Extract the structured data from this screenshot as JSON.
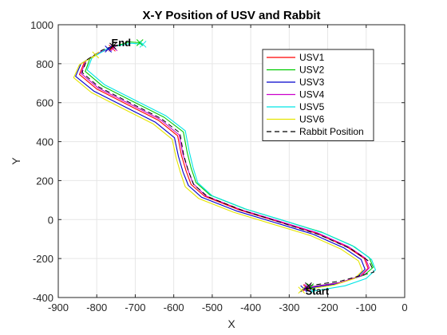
{
  "chart_data": {
    "type": "line",
    "title": "X-Y Position of USV and Rabbit",
    "xlabel": "X",
    "ylabel": "Y",
    "xlim": [
      -900,
      0
    ],
    "ylim": [
      -400,
      1000
    ],
    "xticks": [
      "-900",
      "-800",
      "-700",
      "-600",
      "-500",
      "-400",
      "-300",
      "-200",
      "-100",
      "0"
    ],
    "yticks": [
      "-400",
      "-200",
      "0",
      "200",
      "400",
      "600",
      "800",
      "1000"
    ],
    "grid": true,
    "legend_position": "top-right",
    "annotations": [
      {
        "text": "Start",
        "x": -258,
        "y": -385
      },
      {
        "text": "End",
        "x": -762,
        "y": 890
      }
    ],
    "series": [
      {
        "name": "USV1",
        "color": "#ff0000",
        "x": [
          -255,
          -170,
          -115,
          -95,
          -105,
          -150,
          -230,
          -330,
          -430,
          -520,
          -555,
          -568,
          -580,
          -590,
          -640,
          -720,
          -800,
          -845,
          -832,
          -790,
          -760
        ],
        "y": [
          -350,
          -325,
          -290,
          -250,
          -200,
          -140,
          -70,
          -10,
          50,
          120,
          180,
          250,
          330,
          430,
          510,
          590,
          670,
          745,
          810,
          860,
          880
        ]
      },
      {
        "name": "USV2",
        "color": "#00cc00",
        "x": [
          -245,
          -160,
          -105,
          -82,
          -92,
          -135,
          -215,
          -315,
          -415,
          -505,
          -542,
          -555,
          -565,
          -575,
          -625,
          -705,
          -785,
          -830,
          -818,
          -770,
          -715,
          -688
        ],
        "y": [
          -345,
          -320,
          -285,
          -245,
          -195,
          -135,
          -65,
          -5,
          55,
          125,
          190,
          265,
          345,
          450,
          525,
          605,
          685,
          760,
          825,
          880,
          912,
          908
        ]
      },
      {
        "name": "USV3",
        "color": "#0000cc",
        "x": [
          -262,
          -178,
          -123,
          -103,
          -113,
          -158,
          -238,
          -338,
          -438,
          -528,
          -562,
          -576,
          -588,
          -598,
          -648,
          -728,
          -808,
          -855,
          -841,
          -800,
          -770
        ],
        "y": [
          -355,
          -330,
          -295,
          -255,
          -205,
          -145,
          -75,
          -15,
          45,
          115,
          175,
          245,
          325,
          420,
          500,
          580,
          660,
          735,
          800,
          850,
          875
        ]
      },
      {
        "name": "USV4",
        "color": "#cc00cc",
        "x": [
          -252,
          -167,
          -112,
          -92,
          -102,
          -147,
          -227,
          -327,
          -427,
          -517,
          -550,
          -563,
          -576,
          -586,
          -636,
          -716,
          -796,
          -841,
          -828,
          -786,
          -755
        ],
        "y": [
          -348,
          -323,
          -288,
          -248,
          -198,
          -138,
          -68,
          -8,
          52,
          122,
          185,
          255,
          335,
          435,
          515,
          595,
          675,
          750,
          815,
          865,
          882
        ]
      },
      {
        "name": "USV5",
        "color": "#00e5e5",
        "x": [
          -240,
          -155,
          -100,
          -76,
          -86,
          -130,
          -210,
          -310,
          -410,
          -500,
          -538,
          -550,
          -560,
          -570,
          -620,
          -700,
          -780,
          -825,
          -812,
          -765,
          -710,
          -680
        ],
        "y": [
          -368,
          -340,
          -302,
          -258,
          -205,
          -140,
          -70,
          -8,
          52,
          122,
          190,
          268,
          350,
          456,
          532,
          612,
          692,
          768,
          832,
          885,
          905,
          900
        ]
      },
      {
        "name": "USV6",
        "color": "#e5e500",
        "x": [
          -268,
          -185,
          -130,
          -110,
          -120,
          -165,
          -245,
          -345,
          -445,
          -535,
          -570,
          -582,
          -594,
          -604,
          -654,
          -734,
          -814,
          -860,
          -845,
          -803
        ],
        "y": [
          -362,
          -337,
          -302,
          -262,
          -212,
          -152,
          -82,
          -22,
          38,
          108,
          168,
          238,
          318,
          412,
          492,
          572,
          652,
          728,
          795,
          845
        ]
      },
      {
        "name": "Rabbit Position",
        "color": "#000000",
        "dashed": true,
        "x": [
          -250,
          -165,
          -105,
          -80,
          -92,
          -140,
          -222,
          -322,
          -422,
          -512,
          -548,
          -562,
          -574,
          -584,
          -634,
          -714,
          -794,
          -838,
          -826,
          -786,
          -758
        ],
        "y": [
          -340,
          -315,
          -282,
          -270,
          -215,
          -150,
          -78,
          -15,
          48,
          118,
          180,
          250,
          330,
          445,
          520,
          600,
          680,
          755,
          820,
          870,
          890
        ]
      }
    ]
  }
}
